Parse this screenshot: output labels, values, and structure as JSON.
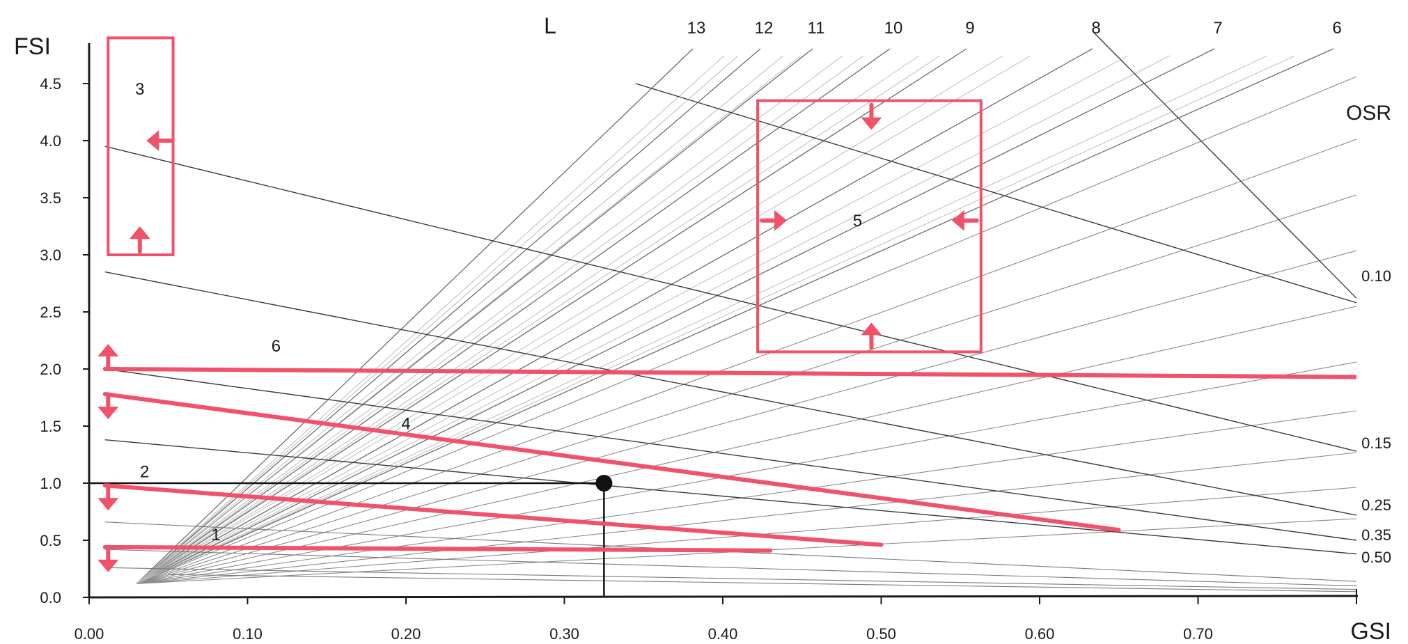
{
  "chart_data": {
    "type": "line",
    "xlabel": "GSI",
    "ylabel": "FSI",
    "xlim": [
      0,
      0.8
    ],
    "ylim": [
      0,
      5
    ],
    "x_ticks": [
      "0.00",
      "0.10",
      "0.20",
      "0.30",
      "0.40",
      "0.50",
      "0.60",
      "0.70"
    ],
    "y_ticks": [
      "0.0",
      "0.5",
      "1.0",
      "1.5",
      "2.0",
      "2.5",
      "3.0",
      "3.5",
      "4.0",
      "4.5"
    ],
    "l_title": "L",
    "l_lines": [
      {
        "label": "13",
        "value": 13
      },
      {
        "label": "12",
        "value": 12
      },
      {
        "label": "11",
        "value": 11
      },
      {
        "label": "10",
        "value": 10
      },
      {
        "label": "9",
        "value": 9
      },
      {
        "label": "8",
        "value": 8
      },
      {
        "label": "7",
        "value": 7
      },
      {
        "label": "6",
        "value": 6
      }
    ],
    "osr_title": "OSR",
    "osr_lines": [
      {
        "label": "0.10",
        "points": [
          [
            0.345,
            4.5
          ],
          [
            0.8,
            2.58
          ]
        ]
      },
      {
        "label": "0.15",
        "points": [
          [
            0.01,
            3.95
          ],
          [
            0.8,
            1.28
          ]
        ]
      },
      {
        "label": "0.25",
        "points": [
          [
            0.01,
            2.85
          ],
          [
            0.8,
            0.72
          ]
        ]
      },
      {
        "label": "0.35",
        "points": [
          [
            0.01,
            2.0
          ],
          [
            0.8,
            0.5
          ]
        ]
      },
      {
        "label": "0.50",
        "points": [
          [
            0.01,
            1.38
          ],
          [
            0.8,
            0.38
          ]
        ]
      }
    ],
    "envelope_line": {
      "points": [
        [
          0.634,
          4.95
        ],
        [
          0.8,
          2.62
        ]
      ]
    },
    "faint_lines": [
      {
        "points": [
          [
            0.01,
            0.66
          ],
          [
            0.8,
            0.14
          ]
        ]
      },
      {
        "points": [
          [
            0.01,
            0.42
          ],
          [
            0.8,
            0.1
          ]
        ]
      },
      {
        "points": [
          [
            0.01,
            0.26
          ],
          [
            0.8,
            0.07
          ]
        ]
      },
      {
        "points": [
          [
            0.05,
            0.2
          ],
          [
            0.8,
            0.05
          ]
        ]
      }
    ],
    "highlight_color": "#f0526a",
    "zone_lines": [
      {
        "label": "6",
        "points": [
          [
            0.01,
            2.0
          ],
          [
            0.8,
            1.93
          ]
        ]
      },
      {
        "label": "4",
        "points": [
          [
            0.01,
            1.78
          ],
          [
            0.65,
            0.59
          ]
        ]
      },
      {
        "label": "2",
        "points": [
          [
            0.01,
            0.98
          ],
          [
            0.5,
            0.46
          ]
        ]
      },
      {
        "label": "1",
        "points": [
          [
            0.01,
            0.44
          ],
          [
            0.43,
            0.41
          ]
        ]
      }
    ],
    "zone_boxes": [
      {
        "label": "3",
        "x_range": [
          0.012,
          0.053
        ],
        "y_range": [
          3.0,
          4.9
        ]
      },
      {
        "label": "5",
        "x_range": [
          0.422,
          0.563
        ],
        "y_range": [
          2.15,
          4.35
        ]
      }
    ],
    "marked_point": {
      "x": 0.325,
      "y": 1.0
    }
  }
}
